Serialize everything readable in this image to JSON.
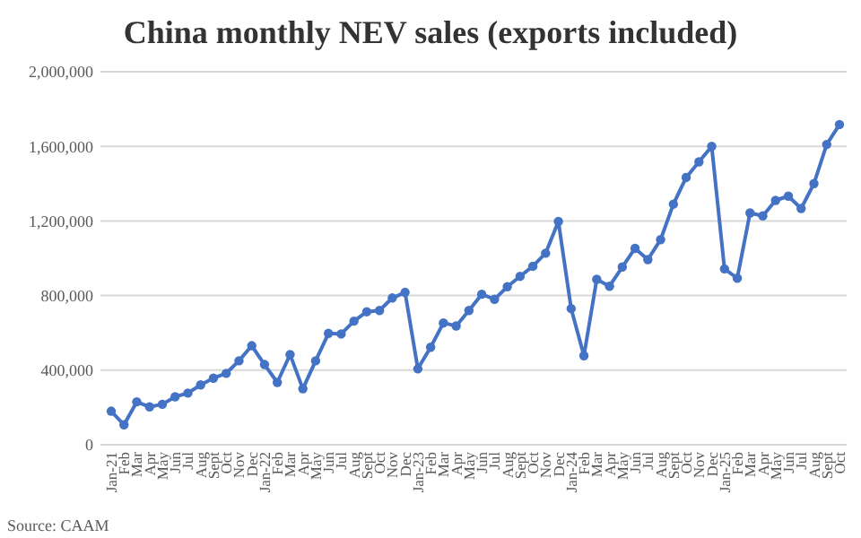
{
  "chart_data": {
    "type": "line",
    "title": "China monthly NEV sales (exports included)",
    "categories": [
      "Jan-21",
      "Feb",
      "Mar",
      "Apr",
      "May",
      "Jun",
      "Jul",
      "Aug",
      "Sept",
      "Oct",
      "Nov",
      "Dec",
      "Jan-22",
      "Feb",
      "Mar",
      "Apr",
      "May",
      "Jun",
      "Jul",
      "Aug",
      "Sept",
      "Oct",
      "Nov",
      "Dec",
      "Jan-23",
      "Feb",
      "Mar",
      "Apr",
      "May",
      "Jun",
      "Jul",
      "Aug",
      "Sept",
      "Oct",
      "Nov",
      "Dec",
      "Jan-24",
      "Feb",
      "Mar",
      "Apr",
      "May",
      "Jun",
      "Jul",
      "Aug",
      "Sept",
      "Oct",
      "Nov",
      "Dec",
      "Jan-25",
      "Feb",
      "Mar",
      "Apr",
      "May",
      "Jun",
      "Jul",
      "Aug",
      "Sept",
      "Oct"
    ],
    "values": [
      180000,
      107000,
      230000,
      203000,
      217000,
      257000,
      277000,
      321000,
      357000,
      383000,
      450000,
      531000,
      430000,
      334000,
      484000,
      300000,
      450000,
      597000,
      594000,
      663000,
      713000,
      720000,
      787000,
      817000,
      407000,
      523000,
      653000,
      637000,
      720000,
      807000,
      780000,
      847000,
      903000,
      957000,
      1027000,
      1197000,
      730000,
      477000,
      887000,
      850000,
      953000,
      1053000,
      993000,
      1100000,
      1290000,
      1433000,
      1517000,
      1600000,
      943000,
      893000,
      1243000,
      1227000,
      1310000,
      1333000,
      1267000,
      1400000,
      1610000,
      1717000
    ],
    "color": "#4472c4",
    "ylim": [
      0,
      2000000
    ],
    "yticks": [
      0,
      {
        "value": 400000,
        "label": "400,000"
      },
      {
        "value": 800000,
        "label": "800,000"
      },
      {
        "value": 1200000,
        "label": "1,200,000"
      },
      {
        "value": 1600000,
        "label": "1,600,000"
      },
      {
        "value": 2000000,
        "label": "2,000,000"
      }
    ],
    "grid": "y",
    "marker": "circle",
    "line_style": "solid",
    "annotations": [
      "Source: CAAM"
    ]
  }
}
